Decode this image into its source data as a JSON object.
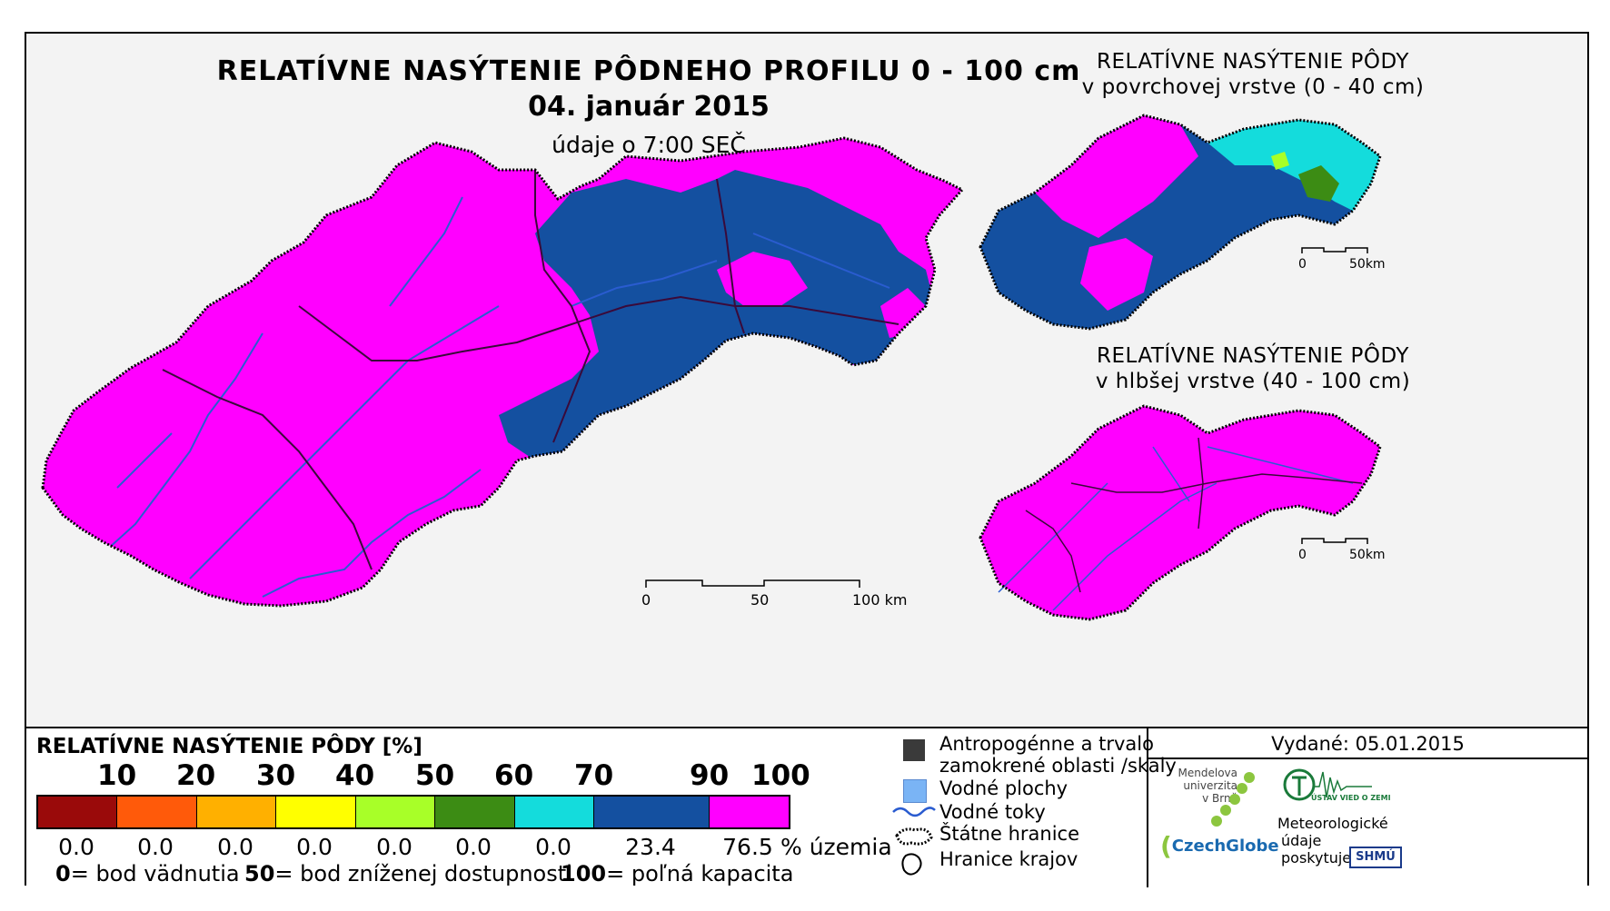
{
  "header": {
    "title": "RELATÍVNE NASÝTENIE PÔDNEHO PROFILU 0 - 100 cm",
    "date": "04. január 2015",
    "time": "údaje o 7:00 SEČ"
  },
  "maps": {
    "main": {
      "scale_ticks": [
        "0",
        "50",
        "100 km"
      ]
    },
    "top": {
      "title_line1": "RELATÍVNE NASÝTENIE PÔDY",
      "title_line2": "v povrchovej vrstve (0 - 40 cm)",
      "scale_ticks": [
        "0",
        "50km"
      ]
    },
    "bottom": {
      "title_line1": "RELATÍVNE NASÝTENIE PÔDY",
      "title_line2": "v hlbšej vrstve (40 - 100 cm)",
      "scale_ticks": [
        "0",
        "50km"
      ]
    }
  },
  "legend": {
    "title": "RELATÍVNE NASÝTENIE PÔDY [%]",
    "ticks": [
      "10",
      "20",
      "30",
      "40",
      "50",
      "60",
      "70",
      "90",
      "100"
    ],
    "classes": [
      {
        "color": "#9a0a0a",
        "share": "0.0"
      },
      {
        "color": "#ff5a0a",
        "share": "0.0"
      },
      {
        "color": "#ffb000",
        "share": "0.0"
      },
      {
        "color": "#ffff00",
        "share": "0.0"
      },
      {
        "color": "#a8ff28",
        "share": "0.0"
      },
      {
        "color": "#3c8c14",
        "share": "0.0"
      },
      {
        "color": "#14dcdc",
        "share": "0.0"
      },
      {
        "color": "#1450a0",
        "share": "23.4"
      },
      {
        "color": "#ff00ff",
        "share": "76.5"
      }
    ],
    "share_unit": "% územia",
    "definitions": [
      {
        "value": "0",
        "text": "= bod vädnutia"
      },
      {
        "value": "50",
        "text": "= bod zníženej dostupnosti"
      },
      {
        "value": "100",
        "text": "= poľná kapacita"
      }
    ]
  },
  "symbols": {
    "anthropogenic_line1": "Antropogénne a trvalo",
    "anthropogenic_line2": "zamokrené oblasti /skaly",
    "water_areas": "Vodné plochy",
    "rivers": "Vodné toky",
    "state_border": "Štátne hranice",
    "region_border": "Hranice krajov"
  },
  "issue": {
    "issued": "Vydané: 05.01.2015",
    "mendel_line1": "Mendelova",
    "mendel_line2": "univerzita",
    "mendel_line3": "v Brně",
    "czechglobe": "CzechGlobe",
    "uvz": "ÚSTAV VIED O ZEMI",
    "meteo_line1": "Meteorologické",
    "meteo_line2": "údaje",
    "meteo_line3": "poskytuje:",
    "shmu": "SHMÚ"
  },
  "colors": {
    "magenta": "#ff00ff",
    "blue": "#1450a0",
    "cyan": "#14dcdc",
    "green": "#3c8c14",
    "river": "#2a5cd0",
    "water": "#7ab4f5",
    "anthropogenic": "#3a3a3a"
  }
}
